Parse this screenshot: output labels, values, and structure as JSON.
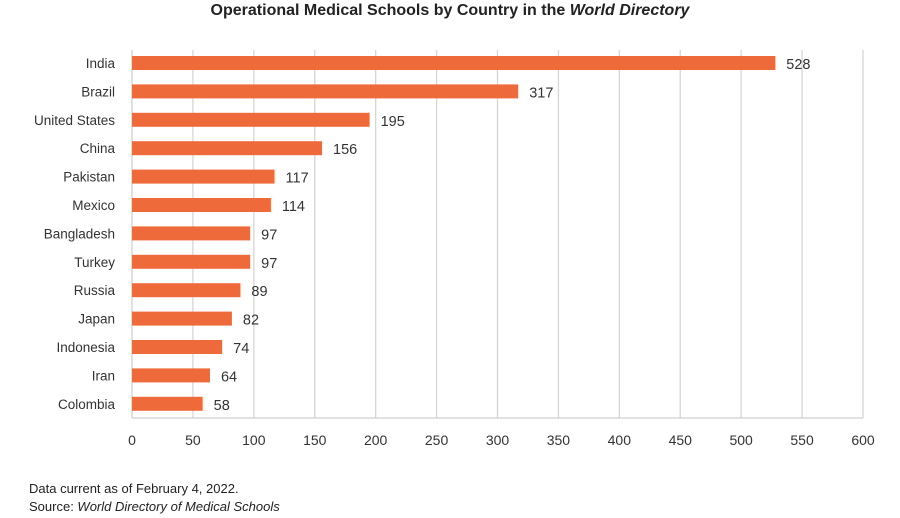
{
  "chart_data": {
    "type": "bar",
    "orientation": "horizontal",
    "title_prefix": "Operational Medical Schools by Country in the ",
    "title_italic": "World Directory",
    "categories": [
      "India",
      "Brazil",
      "United States",
      "China",
      "Pakistan",
      "Mexico",
      "Bangladesh",
      "Turkey",
      "Russia",
      "Japan",
      "Indonesia",
      "Iran",
      "Colombia"
    ],
    "values": [
      528,
      317,
      195,
      156,
      117,
      114,
      97,
      97,
      89,
      82,
      74,
      64,
      58
    ],
    "xlim": [
      0,
      600
    ],
    "xticks": [
      0,
      50,
      100,
      150,
      200,
      250,
      300,
      350,
      400,
      450,
      500,
      550,
      600
    ],
    "grid": "vertical",
    "bar_color": "#EE6A3A",
    "data_labels": true
  },
  "footer": {
    "note": "Data current as of February 4, 2022.",
    "source_prefix": "Source: ",
    "source_italic": "World Directory of Medical Schools"
  }
}
